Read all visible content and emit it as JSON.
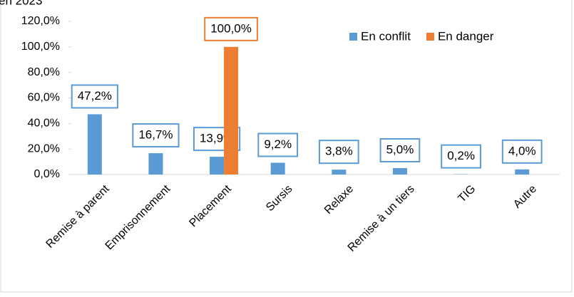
{
  "chart_data": {
    "type": "bar",
    "title": "en 2023",
    "categories": [
      "Remise à parent",
      "Emprisonnement",
      "Placement",
      "Sursis",
      "Relaxe",
      "Remise à un tiers",
      "TIG",
      "Autre"
    ],
    "series": [
      {
        "name": "En conflit",
        "color": "#5b9bd5",
        "values": [
          47.2,
          16.7,
          13.9,
          9.2,
          3.8,
          5.0,
          0.2,
          4.0
        ],
        "value_labels": [
          "47,2%",
          "16,7%",
          "13,9%",
          "9,2%",
          "3,8%",
          "5,0%",
          "0,2%",
          "4,0%"
        ]
      },
      {
        "name": "En danger",
        "color": "#ed7d31",
        "values": [
          null,
          null,
          100,
          null,
          null,
          null,
          null,
          null
        ],
        "value_labels": [
          null,
          null,
          "100,0%",
          null,
          null,
          null,
          null,
          null
        ]
      }
    ],
    "ylim": [
      0,
      120
    ],
    "yticks": [
      {
        "value": 0,
        "label": "0,0%"
      },
      {
        "value": 20,
        "label": "20,0%"
      },
      {
        "value": 40,
        "label": "40,0%"
      },
      {
        "value": 60,
        "label": "60,0%"
      },
      {
        "value": 80,
        "label": "80,0%"
      },
      {
        "value": 100,
        "label": "100,0%"
      },
      {
        "value": 120,
        "label": "120,0%"
      }
    ],
    "legend": "top-right"
  }
}
